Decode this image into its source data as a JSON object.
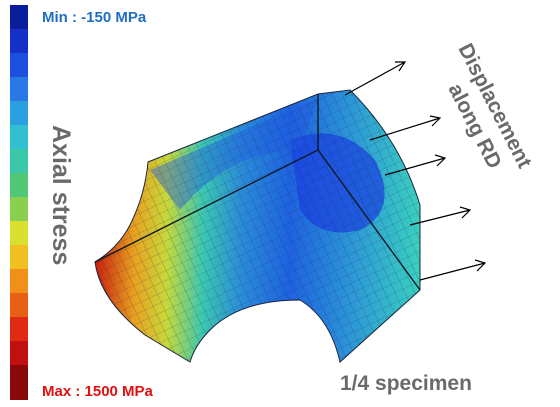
{
  "colorbar": {
    "min_label": "Min : -150 MPa",
    "max_label": "Max : 1500 MPa",
    "title": "Axial stress"
  },
  "annotations": {
    "displacement": [
      "Displacement",
      "along RD"
    ],
    "specimen": "1/4 specimen"
  }
}
